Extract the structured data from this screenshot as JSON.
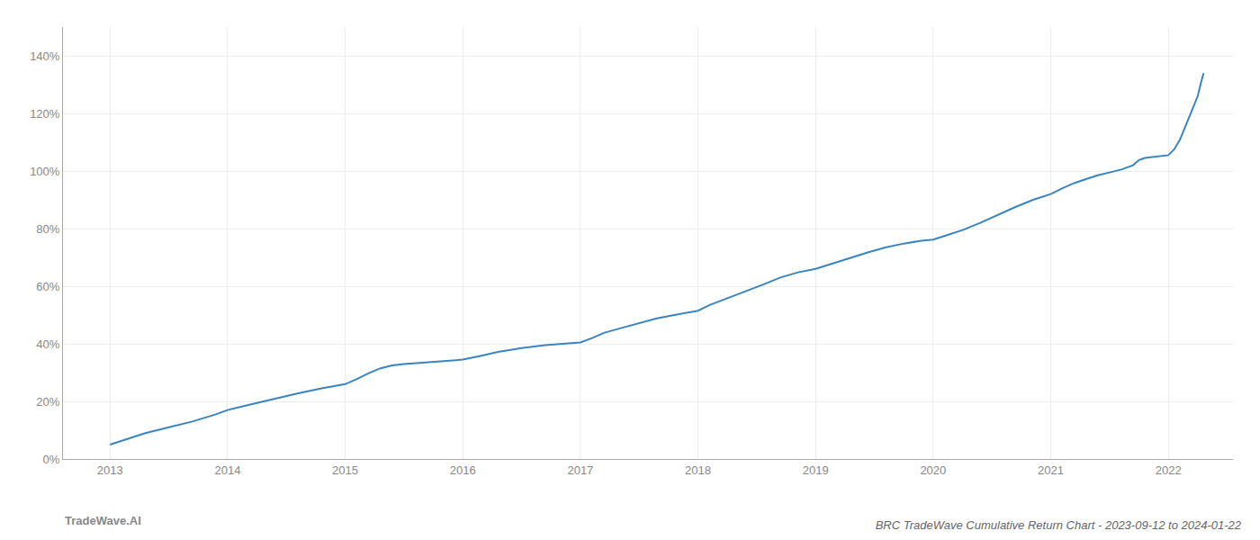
{
  "chart_data": {
    "type": "line",
    "title": "BRC TradeWave Cumulative Return Chart - 2023-09-12 to 2024-01-22",
    "annotations": [
      "TradeWave.AI"
    ],
    "color": "#3a85c0",
    "grid": true,
    "x": [
      2013.0,
      2013.15,
      2013.3,
      2013.5,
      2013.7,
      2013.9,
      2014.0,
      2014.2,
      2014.4,
      2014.6,
      2014.8,
      2015.0,
      2015.1,
      2015.2,
      2015.3,
      2015.4,
      2015.5,
      2015.6,
      2015.7,
      2015.8,
      2015.9,
      2016.0,
      2016.15,
      2016.3,
      2016.5,
      2016.7,
      2016.85,
      2017.0,
      2017.1,
      2017.2,
      2017.35,
      2017.5,
      2017.65,
      2017.8,
      2017.9,
      2018.0,
      2018.1,
      2018.25,
      2018.4,
      2018.55,
      2018.7,
      2018.85,
      2019.0,
      2019.15,
      2019.3,
      2019.45,
      2019.6,
      2019.75,
      2019.9,
      2020.0,
      2020.1,
      2020.25,
      2020.4,
      2020.55,
      2020.7,
      2020.85,
      2021.0,
      2021.1,
      2021.2,
      2021.3,
      2021.4,
      2021.5,
      2021.6,
      2021.7,
      2021.75,
      2021.8,
      2021.85,
      2021.9,
      2021.95,
      2022.0,
      2022.05,
      2022.1,
      2022.15,
      2022.2,
      2022.25,
      2022.28,
      2022.3
    ],
    "values": [
      0.05,
      0.07,
      0.09,
      0.11,
      0.13,
      0.155,
      0.17,
      0.19,
      0.21,
      0.228,
      0.245,
      0.26,
      0.278,
      0.298,
      0.315,
      0.325,
      0.33,
      0.333,
      0.335,
      0.337,
      0.34,
      0.345,
      0.358,
      0.372,
      0.385,
      0.395,
      0.4,
      0.405,
      0.42,
      0.438,
      0.455,
      0.472,
      0.488,
      0.5,
      0.508,
      0.515,
      0.535,
      0.558,
      0.58,
      0.605,
      0.63,
      0.648,
      0.66,
      0.68,
      0.7,
      0.718,
      0.735,
      0.748,
      0.758,
      0.762,
      0.775,
      0.795,
      0.82,
      0.848,
      0.875,
      0.9,
      0.92,
      0.94,
      0.958,
      0.972,
      0.985,
      0.995,
      1.005,
      1.02,
      1.038,
      1.045,
      1.048,
      1.05,
      1.052,
      1.055,
      1.075,
      1.11,
      1.16,
      1.21,
      1.26,
      1.31,
      1.34
    ],
    "xlim": [
      2012.6,
      2022.55
    ],
    "xticks": [
      2013,
      2014,
      2015,
      2016,
      2017,
      2018,
      2019,
      2020,
      2021,
      2022
    ],
    "ylim": [
      0.0,
      1.5
    ],
    "yticks": [
      {
        "value": 0.0,
        "label": "0%"
      },
      {
        "value": 0.2,
        "label": "20%"
      },
      {
        "value": 0.4,
        "label": "40%"
      },
      {
        "value": 0.6,
        "label": "60%"
      },
      {
        "value": 0.8,
        "label": "80%"
      },
      {
        "value": 1.0,
        "label": "100%"
      },
      {
        "value": 1.2,
        "label": "120%"
      },
      {
        "value": 1.4,
        "label": "140%"
      }
    ]
  }
}
